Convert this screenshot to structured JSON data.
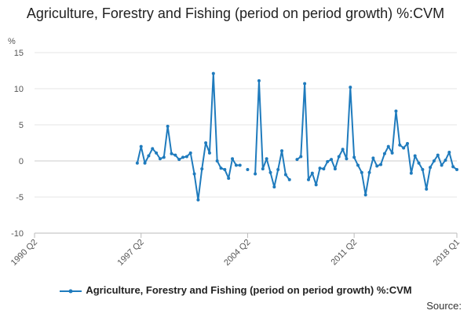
{
  "chart_data": {
    "type": "line",
    "title": "Agriculture, Forestry and Fishing (period on period growth) %:CVM",
    "ylabel": "%",
    "ylim": [
      -10,
      15
    ],
    "yticks": [
      15,
      10,
      5,
      0,
      -5,
      -10
    ],
    "xrange": [
      "1990 Q2",
      "2018 Q1"
    ],
    "xticks": [
      "1990 Q2",
      "1997 Q2",
      "2004 Q2",
      "2011 Q2",
      "2018 Q1"
    ],
    "grid": true,
    "legend_position": "bottom",
    "series": [
      {
        "name": "Agriculture, Forestry and Fishing (period on period growth) %:CVM",
        "color": "#1f7bbd",
        "points": [
          [
            "1997 Q1",
            -0.3
          ],
          [
            "1997 Q2",
            2.0
          ],
          [
            "1997 Q3",
            -0.3
          ],
          [
            "1997 Q4",
            0.7
          ],
          [
            "1998 Q1",
            1.7
          ],
          [
            "1998 Q2",
            1.1
          ],
          [
            "1998 Q3",
            0.3
          ],
          [
            "1998 Q4",
            0.5
          ],
          [
            "1999 Q1",
            4.8
          ],
          [
            "1999 Q2",
            1.0
          ],
          [
            "1999 Q3",
            0.8
          ],
          [
            "1999 Q4",
            0.2
          ],
          [
            "2000 Q1",
            0.5
          ],
          [
            "2000 Q2",
            0.6
          ],
          [
            "2000 Q3",
            1.1
          ],
          [
            "2000 Q4",
            -1.8
          ],
          [
            "2001 Q1",
            -5.4
          ],
          [
            "2001 Q2",
            -1.1
          ],
          [
            "2001 Q3",
            2.5
          ],
          [
            "2001 Q4",
            1.1
          ],
          [
            "2002 Q1",
            12.1
          ],
          [
            "2002 Q2",
            0.0
          ],
          [
            "2002 Q3",
            -1.0
          ],
          [
            "2002 Q4",
            -1.2
          ],
          [
            "2003 Q1",
            -2.4
          ],
          [
            "2003 Q2",
            0.3
          ],
          [
            "2003 Q3",
            -0.6
          ],
          [
            "2003 Q4",
            -0.6
          ],
          [
            "2004 Q1",
            null
          ],
          [
            "2004 Q2",
            -1.2
          ],
          [
            "2004 Q3",
            null
          ],
          [
            "2004 Q4",
            -1.8
          ],
          [
            "2005 Q1",
            11.1
          ],
          [
            "2005 Q2",
            -1.1
          ],
          [
            "2005 Q3",
            0.3
          ],
          [
            "2005 Q4",
            -1.6
          ],
          [
            "2006 Q1",
            -3.6
          ],
          [
            "2006 Q2",
            -1.2
          ],
          [
            "2006 Q3",
            1.4
          ],
          [
            "2006 Q4",
            -1.9
          ],
          [
            "2007 Q1",
            -2.6
          ],
          [
            "2007 Q2",
            null
          ],
          [
            "2007 Q3",
            0.2
          ],
          [
            "2007 Q4",
            0.6
          ],
          [
            "2008 Q1",
            10.7
          ],
          [
            "2008 Q2",
            -2.6
          ],
          [
            "2008 Q3",
            -1.7
          ],
          [
            "2008 Q4",
            -3.3
          ],
          [
            "2009 Q1",
            -1.0
          ],
          [
            "2009 Q2",
            -1.1
          ],
          [
            "2009 Q3",
            -0.1
          ],
          [
            "2009 Q4",
            0.2
          ],
          [
            "2010 Q1",
            -1.1
          ],
          [
            "2010 Q2",
            0.6
          ],
          [
            "2010 Q3",
            1.6
          ],
          [
            "2010 Q4",
            0.3
          ],
          [
            "2011 Q1",
            10.2
          ],
          [
            "2011 Q2",
            0.5
          ],
          [
            "2011 Q3",
            -0.6
          ],
          [
            "2011 Q4",
            -1.6
          ],
          [
            "2012 Q1",
            -4.7
          ],
          [
            "2012 Q2",
            -1.6
          ],
          [
            "2012 Q3",
            0.4
          ],
          [
            "2012 Q4",
            -0.7
          ],
          [
            "2013 Q1",
            -0.5
          ],
          [
            "2013 Q2",
            1.0
          ],
          [
            "2013 Q3",
            2.0
          ],
          [
            "2013 Q4",
            1.1
          ],
          [
            "2014 Q1",
            6.9
          ],
          [
            "2014 Q2",
            2.2
          ],
          [
            "2014 Q3",
            1.8
          ],
          [
            "2014 Q4",
            2.4
          ],
          [
            "2015 Q1",
            -1.7
          ],
          [
            "2015 Q2",
            0.7
          ],
          [
            "2015 Q3",
            -0.3
          ],
          [
            "2015 Q4",
            -1.2
          ],
          [
            "2016 Q1",
            -3.9
          ],
          [
            "2016 Q2",
            -0.9
          ],
          [
            "2016 Q3",
            0.0
          ],
          [
            "2016 Q4",
            0.8
          ],
          [
            "2017 Q1",
            -0.6
          ],
          [
            "2017 Q2",
            0.1
          ],
          [
            "2017 Q3",
            1.2
          ],
          [
            "2017 Q4",
            -0.8
          ],
          [
            "2018 Q1",
            -1.2
          ]
        ]
      }
    ]
  },
  "legend": {
    "label": "Agriculture, Forestry and Fishing (period on period growth) %:CVM"
  },
  "source": {
    "label": "Source:"
  }
}
